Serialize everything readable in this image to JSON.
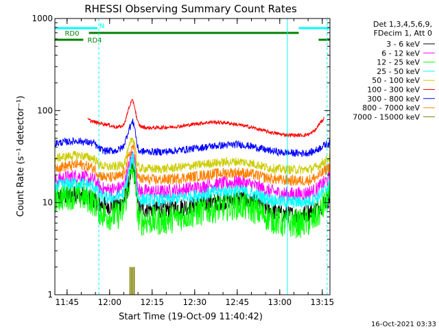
{
  "chart_data": {
    "type": "line",
    "title": "RHESSI Observing Summary Count Rates",
    "xlabel": "Start Time (19-Oct-09 11:40:42)",
    "ylabel": "Count Rate (s⁻¹ detector⁻¹)",
    "yscale": "log",
    "ylim": [
      1,
      1000
    ],
    "xlim_minutes": [
      0,
      97
    ],
    "x_ticks": [
      {
        "label": "11:45",
        "minute": 4.3
      },
      {
        "label": "12:00",
        "minute": 19.3
      },
      {
        "label": "12:15",
        "minute": 34.3
      },
      {
        "label": "12:30",
        "minute": 49.3
      },
      {
        "label": "12:45",
        "minute": 64.3
      },
      {
        "label": "13:00",
        "minute": 79.3
      },
      {
        "label": "13:15",
        "minute": 94.3
      }
    ],
    "y_ticks": [
      {
        "label": "1",
        "value": 1
      },
      {
        "label": "10",
        "value": 10
      },
      {
        "label": "100",
        "value": 100
      },
      {
        "label": "1000",
        "value": 1000
      }
    ],
    "legend_header": [
      "Det 1,3,4,5,6,9,",
      "FDecim 1, Att 0"
    ],
    "series": [
      {
        "name": "3 - 6 keV",
        "color": "#000000",
        "x": [
          0,
          2,
          5,
          8,
          10,
          12,
          14,
          15,
          16,
          17,
          18,
          20,
          22,
          24,
          25,
          26,
          27,
          27.5,
          28,
          28.5,
          29,
          29.5,
          30,
          31,
          32,
          34,
          36,
          40,
          45,
          50,
          55,
          60,
          65,
          70,
          75,
          80,
          85,
          88,
          90,
          91,
          92,
          93,
          94,
          95,
          96,
          97
        ],
        "y": [
          11,
          11.5,
          12,
          12.5,
          12,
          11.5,
          11,
          10,
          9.5,
          9.5,
          9.2,
          9.3,
          9.5,
          10,
          12,
          16,
          22,
          24,
          22,
          16,
          11,
          9,
          8.5,
          8.5,
          8.6,
          8.5,
          8.4,
          8.5,
          9,
          9.5,
          10,
          10.5,
          11,
          10,
          8.5,
          7.5,
          7.3,
          7.5,
          8,
          8.2,
          8.5,
          9,
          9.5,
          10,
          10.5,
          11.5
        ],
        "noise": 0.1
      },
      {
        "name": "6 - 12 keV",
        "color": "#ff00ff",
        "x": [
          0,
          2,
          5,
          8,
          10,
          12,
          14,
          15,
          16,
          17,
          18,
          20,
          22,
          24,
          25,
          26,
          27,
          27.5,
          28,
          28.5,
          29,
          29.5,
          30,
          31,
          32,
          34,
          36,
          40,
          45,
          50,
          55,
          60,
          65,
          70,
          75,
          80,
          85,
          88,
          90,
          91,
          92,
          93,
          94,
          95,
          96,
          97
        ],
        "y": [
          17,
          18,
          19,
          19.5,
          19,
          18,
          17.5,
          15.5,
          14.5,
          14,
          13.8,
          13.9,
          14,
          15,
          18,
          24,
          31,
          34,
          31,
          24,
          17,
          14,
          13.3,
          13.2,
          13.3,
          13.2,
          13,
          13.2,
          13.8,
          14.5,
          15.5,
          16.2,
          16.8,
          15.5,
          13.5,
          12.5,
          12.3,
          12.5,
          13,
          13.2,
          13.8,
          14.5,
          15.5,
          16.5,
          17.5,
          19
        ],
        "noise": 0.08
      },
      {
        "name": "12 - 25 keV",
        "color": "#00ff00",
        "x": [
          0,
          2,
          5,
          8,
          10,
          12,
          14,
          15,
          16,
          17,
          18,
          20,
          22,
          24,
          25,
          26,
          27,
          27.5,
          28,
          28.5,
          29,
          29.5,
          30,
          31,
          32,
          34,
          36,
          40,
          45,
          50,
          55,
          60,
          65,
          70,
          75,
          80,
          85,
          88,
          90,
          91,
          92,
          93,
          94,
          95,
          96,
          97
        ],
        "y": [
          11,
          11.5,
          12,
          12,
          11.5,
          11,
          10,
          9,
          8,
          7.5,
          7.2,
          7.2,
          7.3,
          8,
          11,
          15,
          21,
          23,
          21,
          15,
          9,
          6.8,
          6.3,
          6.3,
          6.4,
          6.4,
          6.3,
          6.5,
          7.2,
          7.8,
          8.5,
          9,
          9.5,
          8.5,
          7,
          6,
          5.9,
          6,
          6.2,
          6.5,
          7,
          7.6,
          8.4,
          9.5,
          10.5,
          12
        ],
        "noise": 0.16
      },
      {
        "name": "25 - 50 keV",
        "color": "#00ffff",
        "x": [
          0,
          2,
          5,
          8,
          10,
          12,
          14,
          15,
          16,
          17,
          18,
          20,
          22,
          24,
          25,
          26,
          27,
          27.5,
          28,
          28.5,
          29,
          29.5,
          30,
          31,
          32,
          34,
          36,
          40,
          45,
          50,
          55,
          60,
          65,
          70,
          75,
          80,
          85,
          88,
          90,
          91,
          92,
          93,
          94,
          95,
          96,
          97
        ],
        "y": [
          15,
          15.5,
          16,
          16.5,
          16,
          15.5,
          15,
          13,
          12,
          11.5,
          11.2,
          11.3,
          11.5,
          12.5,
          15,
          21,
          28,
          31,
          28,
          21,
          13,
          11.2,
          10.8,
          10.8,
          10.8,
          10.7,
          10.6,
          10.8,
          11.4,
          12,
          12.8,
          13.3,
          13.6,
          12.5,
          11,
          10.3,
          10.1,
          10.2,
          10.5,
          10.8,
          11.2,
          11.8,
          12.5,
          13.5,
          14.5,
          15.5
        ],
        "noise": 0.07
      },
      {
        "name": "50 - 100 keV",
        "color": "#cccc00",
        "x": [
          0,
          2,
          5,
          8,
          10,
          12,
          14,
          15,
          16,
          17,
          18,
          20,
          22,
          24,
          25,
          26,
          27,
          27.5,
          28,
          28.5,
          29,
          29.5,
          30,
          31,
          32,
          34,
          36,
          40,
          45,
          50,
          55,
          60,
          65,
          70,
          75,
          80,
          85,
          88,
          90,
          91,
          92,
          93,
          94,
          95,
          96,
          97
        ],
        "y": [
          30,
          31,
          32,
          33,
          32,
          31,
          30,
          27,
          25.5,
          25,
          24.5,
          24.5,
          24.8,
          26,
          30,
          38,
          47,
          50,
          47,
          38,
          26,
          24,
          23.5,
          23.5,
          23.5,
          23.3,
          23.2,
          23.5,
          24.5,
          25.5,
          26.8,
          27.5,
          28,
          26.5,
          24,
          23,
          22.8,
          22.9,
          23.2,
          23.6,
          24.2,
          25,
          26.5,
          28,
          29.5,
          31
        ],
        "noise": 0.05
      },
      {
        "name": "100 - 300 keV",
        "color": "#ff0000",
        "x": [
          0,
          2,
          5,
          8,
          10,
          11,
          11.5,
          14,
          17,
          19,
          20,
          22,
          24,
          25,
          26,
          27,
          27.5,
          28,
          28.5,
          29,
          30,
          32,
          35,
          40,
          45,
          50,
          55,
          60,
          65,
          70,
          75,
          80,
          85,
          88,
          90,
          92,
          93,
          94,
          95,
          95.5,
          96,
          97
        ],
        "y": [
          null,
          null,
          null,
          null,
          null,
          null,
          80,
          75,
          72,
          70,
          68,
          66,
          68,
          80,
          105,
          125,
          128,
          115,
          95,
          78,
          68,
          65,
          65,
          66,
          68,
          72,
          75,
          74,
          70,
          65,
          59,
          55,
          54,
          54,
          56,
          62,
          70,
          76,
          83,
          null,
          null,
          null
        ],
        "noise": 0.02
      },
      {
        "name": "300 - 800 keV",
        "color": "#0000ff",
        "x": [
          0,
          2,
          5,
          8,
          10,
          12,
          14,
          15,
          16,
          17,
          18,
          20,
          22,
          24,
          25,
          26,
          27,
          27.5,
          28,
          28.5,
          29,
          29.5,
          30,
          31,
          32,
          34,
          36,
          40,
          45,
          50,
          55,
          60,
          65,
          70,
          75,
          80,
          85,
          88,
          90,
          91,
          92,
          93,
          94,
          95,
          96,
          97
        ],
        "y": [
          44,
          45,
          46,
          47,
          46,
          45,
          44,
          40,
          38,
          37,
          36.5,
          36.5,
          37,
          40,
          48,
          62,
          72,
          75,
          70,
          55,
          42,
          37,
          36,
          36,
          36,
          35.8,
          35.5,
          36,
          37.5,
          39,
          41,
          42,
          43,
          40.5,
          37,
          35,
          34.5,
          34.5,
          35,
          35.8,
          37,
          38.5,
          40.5,
          42,
          43.5,
          45
        ],
        "noise": 0.04
      },
      {
        "name": "800 - 7000 keV",
        "color": "#ff8000",
        "x": [
          0,
          2,
          5,
          8,
          10,
          12,
          14,
          15,
          16,
          17,
          18,
          20,
          22,
          24,
          25,
          26,
          27,
          27.5,
          28,
          28.5,
          29,
          29.5,
          30,
          31,
          32,
          34,
          36,
          40,
          45,
          50,
          55,
          60,
          65,
          70,
          75,
          80,
          85,
          88,
          90,
          91,
          92,
          93,
          94,
          95,
          96,
          97
        ],
        "y": [
          24,
          24.5,
          25,
          26,
          25.5,
          24.5,
          23.5,
          21,
          19.8,
          19.2,
          18.8,
          18.8,
          19,
          20,
          24,
          31,
          38,
          41,
          37,
          29,
          20,
          18.5,
          18,
          18,
          18,
          17.8,
          17.6,
          17.9,
          18.6,
          19.4,
          20.4,
          21,
          21.4,
          20.2,
          18.5,
          17.6,
          17.3,
          17.4,
          17.7,
          18.1,
          18.7,
          19.5,
          20.6,
          22,
          23.5,
          25
        ],
        "noise": 0.06
      },
      {
        "name": "7000 - 15000 keV",
        "color": "#808000",
        "x": [
          26.5,
          27,
          27.5,
          28
        ],
        "y": [
          2.0,
          2.0,
          2.0,
          2.0
        ],
        "spikes": true
      }
    ],
    "annotations": [
      {
        "label": "RD0",
        "color": "#008000",
        "segments": [
          [
            12,
            86
          ]
        ]
      },
      {
        "label": "RD4",
        "color": "#008000",
        "segments": [
          [
            0,
            10
          ],
          [
            93,
            97
          ]
        ]
      },
      {
        "label": "N",
        "color": "#00ffff",
        "segments": [
          [
            0,
            15
          ],
          [
            86,
            97
          ]
        ]
      }
    ],
    "event_lines": [
      {
        "minute": 15.5,
        "style": "dashed"
      },
      {
        "minute": 82,
        "style": "solid"
      },
      {
        "minute": 96,
        "style": "dashed"
      }
    ]
  },
  "footer": {
    "timestamp": "16-Oct-2021 03:33"
  }
}
